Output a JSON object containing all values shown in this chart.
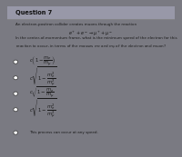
{
  "title": "Question 7",
  "bg_color": "#7a7a82",
  "panel_color": "#c8c8d0",
  "header_color": "#9898a8",
  "text_color": "#1a1a1a",
  "title_color": "#111111",
  "body_text": "An electron-positron collider creates muons through the reaction",
  "reaction": "$e^+ + e^-  \\rightarrow \\mu^+ + \\mu^-$",
  "question": "In the center-of-momentum frame, what is the minimum speed of the electron for this\nreaction to occur, in terms of the masses $m_e$ and $m_\\mu$ of the electron and muon?",
  "options": [
    "$c\\left(1 - \\dfrac{m_e}{m_\\mu}\\right)$",
    "$c\\sqrt{1 - \\dfrac{m_e^2}{m_\\mu^2}}$",
    "$c\\sqrt{1 - \\dfrac{m_e}{m_\\mu}}$",
    "$c\\sqrt{1 - \\dfrac{m_e^2}{m_\\mu^2}}$",
    "This process can occur at any speed."
  ],
  "figsize": [
    2.0,
    1.73
  ],
  "dpi": 100
}
